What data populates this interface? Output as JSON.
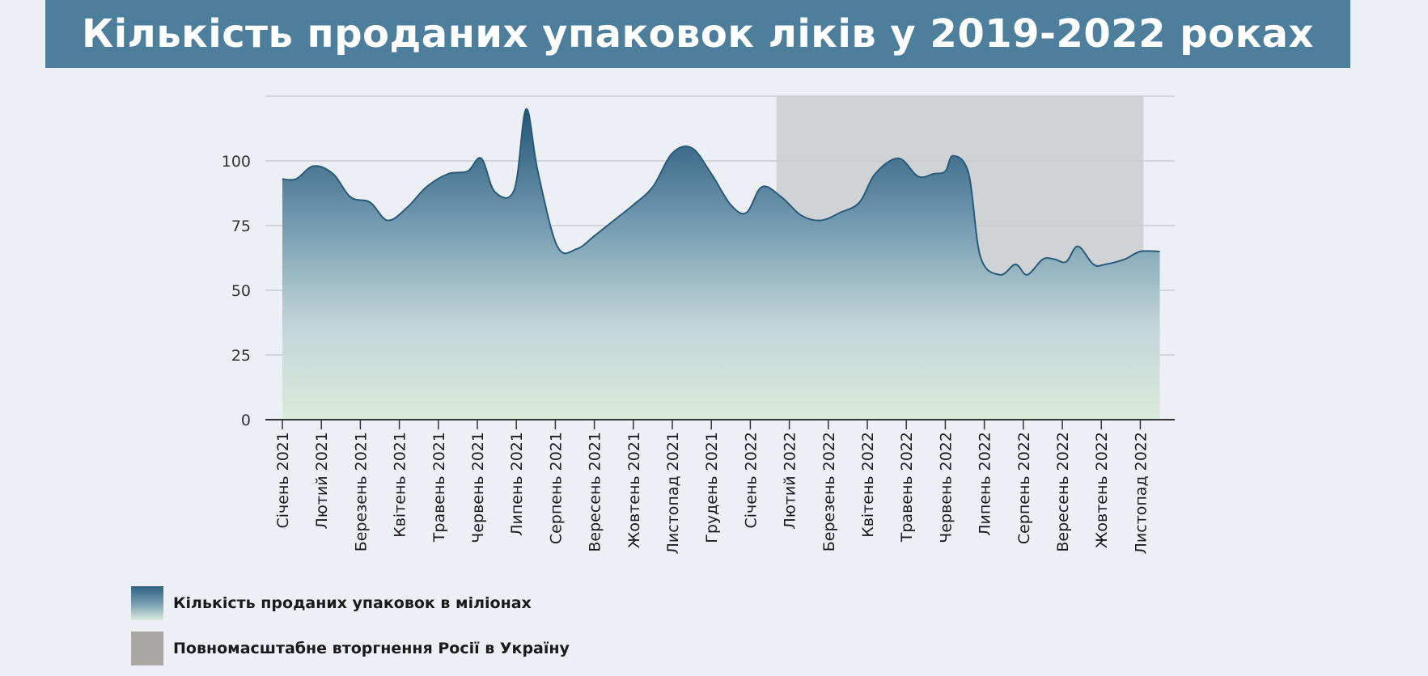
{
  "title": "Кількість проданих упаковок ліків у 2019-2022 роках",
  "colors": {
    "title_bar": "#4d7f9c",
    "area_top": "#2f6183",
    "area_bottom": "#d9eadc",
    "line": "#2a5a7a",
    "invasion_band": "#cfd3d5"
  },
  "chart_data": {
    "type": "area",
    "title": "Кількість проданих упаковок ліків у 2019-2022 роках",
    "ylim": [
      0,
      125
    ],
    "yticks": [
      0,
      25,
      50,
      75,
      100
    ],
    "grid": true,
    "categories": [
      "Січень 2021",
      "Лютий 2021",
      "Березень 2021",
      "Квітень 2021",
      "Травень 2021",
      "Червень 2021",
      "Липень 2021",
      "Серпень 2021",
      "Вересень 2021",
      "Жовтень 2021",
      "Листопад 2021",
      "Грудень 2021",
      "Січень 2022",
      "Лютий 2022",
      "Березень 2022",
      "Квітень 2022",
      "Травень 2022",
      "Червень 2022",
      "Липень 2022",
      "Серпень 2022",
      "Вересень 2022",
      "Жовтень 2022",
      "Листопад 2022"
    ],
    "series": [
      {
        "name": "Кількість проданих упаковок в міліонах",
        "x": [
          0,
          0.35,
          0.8,
          1.3,
          1.75,
          2.25,
          2.7,
          3.2,
          3.7,
          4.25,
          4.75,
          5.1,
          5.45,
          5.95,
          6.25,
          6.55,
          7.05,
          7.55,
          8.0,
          8.5,
          9.0,
          9.5,
          10.0,
          10.5,
          11.0,
          11.5,
          11.9,
          12.3,
          12.8,
          13.3,
          13.8,
          14.3,
          14.8,
          15.2,
          15.8,
          16.3,
          16.7,
          17.0,
          17.2,
          17.6,
          17.9,
          18.4,
          18.8,
          19.1,
          19.5,
          19.8,
          20.1,
          20.4,
          20.8,
          21.1,
          21.6,
          22.0,
          22.5
        ],
        "values": [
          93,
          93,
          98,
          95,
          86,
          84,
          77,
          82,
          90,
          95,
          96,
          101,
          88,
          89,
          120,
          96,
          67,
          66,
          71,
          77,
          83,
          90,
          103,
          105,
          95,
          83,
          80,
          90,
          86,
          79,
          77,
          80,
          84,
          95,
          101,
          94,
          95,
          96,
          102,
          95,
          63,
          56,
          60,
          56,
          62,
          62,
          61,
          67,
          60,
          60,
          62,
          65,
          65
        ]
      }
    ],
    "annotation_band": {
      "name": "Повномасштабне вторгнення Росії в Україну",
      "from_index": 13,
      "to_index": 22
    },
    "legend_position": "bottom-left"
  },
  "legend": {
    "area_label": "Кількість проданих упаковок в міліонах",
    "invasion_label": "Повномасштабне вторгнення Росії в Україну"
  }
}
